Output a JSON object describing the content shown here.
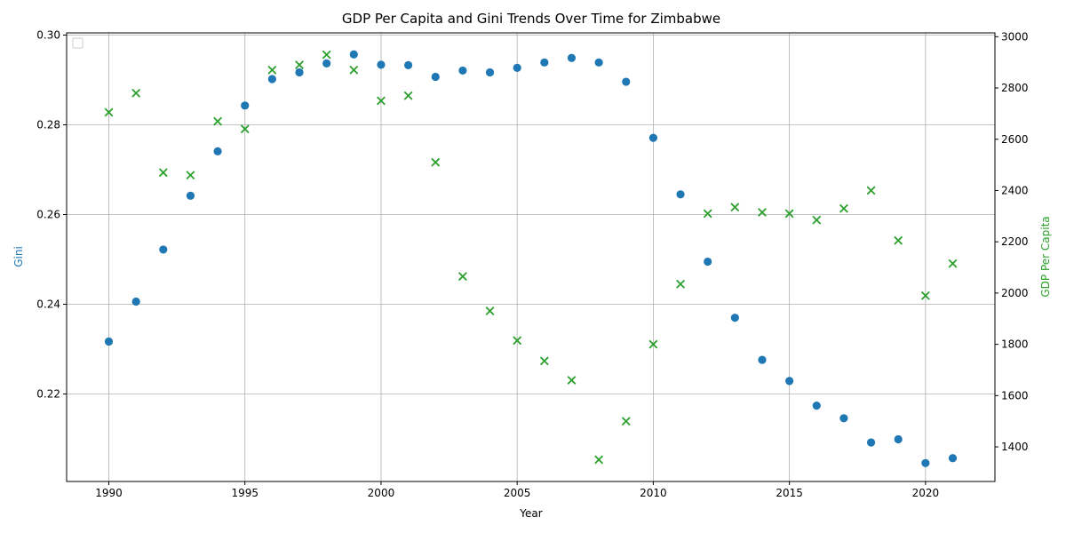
{
  "chart_data": {
    "type": "scatter",
    "title": "GDP Per Capita and Gini Trends Over Time for Zimbabwe",
    "xlabel": "Year",
    "ylabel_left": "Gini",
    "ylabel_right": "GDP Per Capita",
    "xlim": [
      1988.45,
      2022.55
    ],
    "ylim_left": [
      0.2005,
      0.3005
    ],
    "ylim_right": [
      1265,
      3015
    ],
    "x_ticks": [
      "1990",
      "1995",
      "2000",
      "2005",
      "2010",
      "2015",
      "2020"
    ],
    "y_ticks_left": [
      "0.22",
      "0.24",
      "0.26",
      "0.28",
      "0.30"
    ],
    "y_ticks_right": [
      "1400",
      "1600",
      "1800",
      "2000",
      "2200",
      "2400",
      "2600",
      "2800",
      "3000"
    ],
    "grid": true,
    "legend": "top-left (empty)",
    "colors": {
      "gini": "#1f77b4",
      "gdp": "#2ca02c"
    },
    "years": [
      1990,
      1991,
      1992,
      1993,
      1994,
      1995,
      1996,
      1997,
      1998,
      1999,
      2000,
      2001,
      2002,
      2003,
      2004,
      2005,
      2006,
      2007,
      2008,
      2009,
      2010,
      2011,
      2012,
      2013,
      2014,
      2015,
      2016,
      2017,
      2018,
      2019,
      2020,
      2021
    ],
    "series": [
      {
        "axis": "left",
        "marker": "circle",
        "values": [
          0.2317,
          0.2406,
          0.2522,
          0.2642,
          0.2741,
          0.2843,
          0.2902,
          0.2917,
          0.2937,
          0.2957,
          0.2934,
          0.2933,
          0.2907,
          0.2921,
          0.2917,
          0.2927,
          0.2939,
          0.2949,
          0.2939,
          0.2896,
          0.2771,
          0.2645,
          0.2495,
          0.237,
          0.2276,
          0.2229,
          0.2174,
          0.2146,
          0.2092,
          0.2099,
          0.2046,
          0.2057
        ]
      },
      {
        "axis": "right",
        "marker": "x",
        "values": [
          2705,
          2780,
          2470,
          2460,
          2670,
          2640,
          2870,
          2890,
          2930,
          2870,
          2750,
          2770,
          2510,
          2065,
          1930,
          1815,
          1735,
          1660,
          1350,
          1500,
          1800,
          2035,
          2310,
          2335,
          2315,
          2310,
          2285,
          2330,
          2400,
          2205,
          1990,
          2115
        ]
      }
    ]
  }
}
